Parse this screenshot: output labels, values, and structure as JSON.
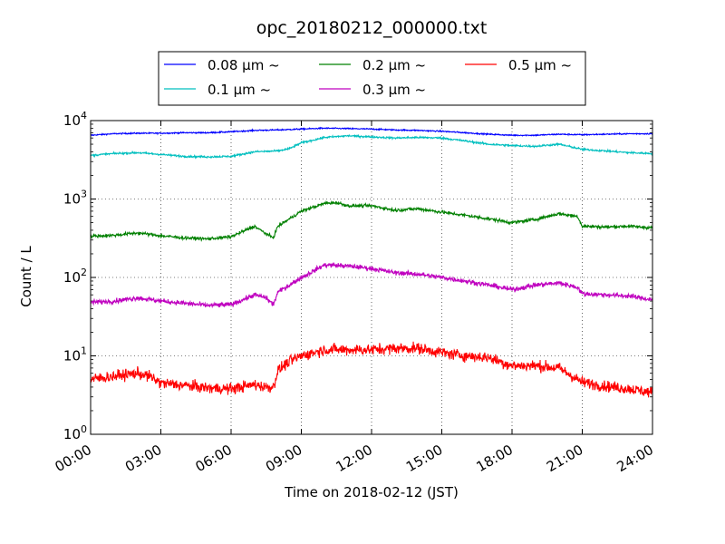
{
  "chart_data": {
    "type": "line",
    "title": "opc_20180212_000000.txt",
    "xlabel": "Time on 2018-02-12 (JST)",
    "ylabel": "Count / L",
    "x_range_hours": [
      0,
      24
    ],
    "x_ticks": [
      {
        "hour": 0,
        "label": "00:00"
      },
      {
        "hour": 3,
        "label": "03:00"
      },
      {
        "hour": 6,
        "label": "06:00"
      },
      {
        "hour": 9,
        "label": "09:00"
      },
      {
        "hour": 12,
        "label": "12:00"
      },
      {
        "hour": 15,
        "label": "15:00"
      },
      {
        "hour": 18,
        "label": "18:00"
      },
      {
        "hour": 21,
        "label": "21:00"
      },
      {
        "hour": 24,
        "label": "24:00"
      }
    ],
    "y_scale": "log",
    "ylim": [
      1,
      10000
    ],
    "y_ticks": [
      {
        "value": 1,
        "base": "10",
        "exp": "0"
      },
      {
        "value": 10,
        "base": "10",
        "exp": "1"
      },
      {
        "value": 100,
        "base": "10",
        "exp": "2"
      },
      {
        "value": 1000,
        "base": "10",
        "exp": "3"
      },
      {
        "value": 10000,
        "base": "10",
        "exp": "4"
      }
    ],
    "grid": true,
    "legend_position": "top",
    "series": [
      {
        "name": "0.08 μm ~",
        "color": "#0000ff",
        "noise": 0.008,
        "points": [
          [
            0,
            6500
          ],
          [
            1,
            6800
          ],
          [
            2,
            6900
          ],
          [
            3,
            6900
          ],
          [
            4,
            7000
          ],
          [
            5,
            7000
          ],
          [
            6,
            7200
          ],
          [
            7,
            7500
          ],
          [
            8,
            7600
          ],
          [
            9,
            7800
          ],
          [
            10,
            8000
          ],
          [
            11,
            7900
          ],
          [
            12,
            7800
          ],
          [
            13,
            7600
          ],
          [
            14,
            7500
          ],
          [
            15,
            7300
          ],
          [
            16,
            7000
          ],
          [
            17,
            6700
          ],
          [
            18,
            6500
          ],
          [
            19,
            6500
          ],
          [
            20,
            6700
          ],
          [
            21,
            6600
          ],
          [
            22,
            6700
          ],
          [
            23,
            6800
          ],
          [
            24,
            6800
          ]
        ]
      },
      {
        "name": "0.1 μm ~",
        "color": "#00bfbf",
        "noise": 0.012,
        "points": [
          [
            0,
            3600
          ],
          [
            1,
            3800
          ],
          [
            2,
            3900
          ],
          [
            3,
            3700
          ],
          [
            4,
            3500
          ],
          [
            5,
            3450
          ],
          [
            6,
            3500
          ],
          [
            7,
            4000
          ],
          [
            8,
            4100
          ],
          [
            8.5,
            4400
          ],
          [
            9,
            5200
          ],
          [
            10,
            6100
          ],
          [
            11,
            6400
          ],
          [
            12,
            6200
          ],
          [
            13,
            6000
          ],
          [
            14,
            6100
          ],
          [
            15,
            6000
          ],
          [
            16,
            5500
          ],
          [
            17,
            5000
          ],
          [
            18,
            4800
          ],
          [
            19,
            4700
          ],
          [
            20,
            5000
          ],
          [
            21,
            4300
          ],
          [
            22,
            4100
          ],
          [
            23,
            3900
          ],
          [
            24,
            3800
          ]
        ]
      },
      {
        "name": "0.2 μm ~",
        "color": "#008000",
        "noise": 0.02,
        "points": [
          [
            0,
            335
          ],
          [
            1,
            345
          ],
          [
            2,
            370
          ],
          [
            3,
            340
          ],
          [
            4,
            320
          ],
          [
            5,
            310
          ],
          [
            6,
            330
          ],
          [
            7,
            450
          ],
          [
            7.5,
            360
          ],
          [
            7.8,
            320
          ],
          [
            8,
            450
          ],
          [
            8.5,
            560
          ],
          [
            9,
            700
          ],
          [
            10,
            880
          ],
          [
            10.5,
            900
          ],
          [
            11,
            820
          ],
          [
            12,
            820
          ],
          [
            13,
            720
          ],
          [
            14,
            750
          ],
          [
            15,
            680
          ],
          [
            16,
            620
          ],
          [
            17,
            560
          ],
          [
            18,
            500
          ],
          [
            19,
            550
          ],
          [
            20,
            650
          ],
          [
            20.8,
            600
          ],
          [
            21,
            450
          ],
          [
            22,
            440
          ],
          [
            23,
            450
          ],
          [
            24,
            430
          ]
        ]
      },
      {
        "name": "0.3 μm ~",
        "color": "#bf00bf",
        "noise": 0.03,
        "points": [
          [
            0,
            48
          ],
          [
            1,
            50
          ],
          [
            2,
            55
          ],
          [
            3,
            50
          ],
          [
            4,
            47
          ],
          [
            5,
            44
          ],
          [
            6,
            45
          ],
          [
            7,
            60
          ],
          [
            7.5,
            55
          ],
          [
            7.8,
            45
          ],
          [
            8,
            65
          ],
          [
            8.5,
            80
          ],
          [
            9,
            100
          ],
          [
            9.5,
            120
          ],
          [
            10,
            145
          ],
          [
            11,
            140
          ],
          [
            12,
            130
          ],
          [
            13,
            115
          ],
          [
            14,
            110
          ],
          [
            15,
            100
          ],
          [
            16,
            90
          ],
          [
            17,
            80
          ],
          [
            18,
            70
          ],
          [
            19,
            80
          ],
          [
            20,
            85
          ],
          [
            20.8,
            75
          ],
          [
            21,
            62
          ],
          [
            22,
            60
          ],
          [
            23,
            58
          ],
          [
            24,
            52
          ]
        ]
      },
      {
        "name": "0.5 μm ~",
        "color": "#ff0000",
        "noise": 0.07,
        "points": [
          [
            0,
            5.0
          ],
          [
            1,
            5.5
          ],
          [
            2,
            6.0
          ],
          [
            2.5,
            5.5
          ],
          [
            3,
            4.5
          ],
          [
            4,
            4.2
          ],
          [
            5,
            3.9
          ],
          [
            6,
            3.8
          ],
          [
            7,
            4.3
          ],
          [
            7.5,
            4.0
          ],
          [
            7.8,
            4.0
          ],
          [
            8,
            6.5
          ],
          [
            8.5,
            8.5
          ],
          [
            9,
            10
          ],
          [
            10,
            12
          ],
          [
            11,
            12
          ],
          [
            12,
            12
          ],
          [
            13,
            12.5
          ],
          [
            14,
            12.5
          ],
          [
            15,
            11
          ],
          [
            16,
            10
          ],
          [
            17,
            9.5
          ],
          [
            18,
            7.5
          ],
          [
            19,
            7.5
          ],
          [
            20,
            7.0
          ],
          [
            21,
            4.6
          ],
          [
            22,
            4.1
          ],
          [
            23,
            3.8
          ],
          [
            24,
            3.4
          ]
        ]
      }
    ]
  }
}
